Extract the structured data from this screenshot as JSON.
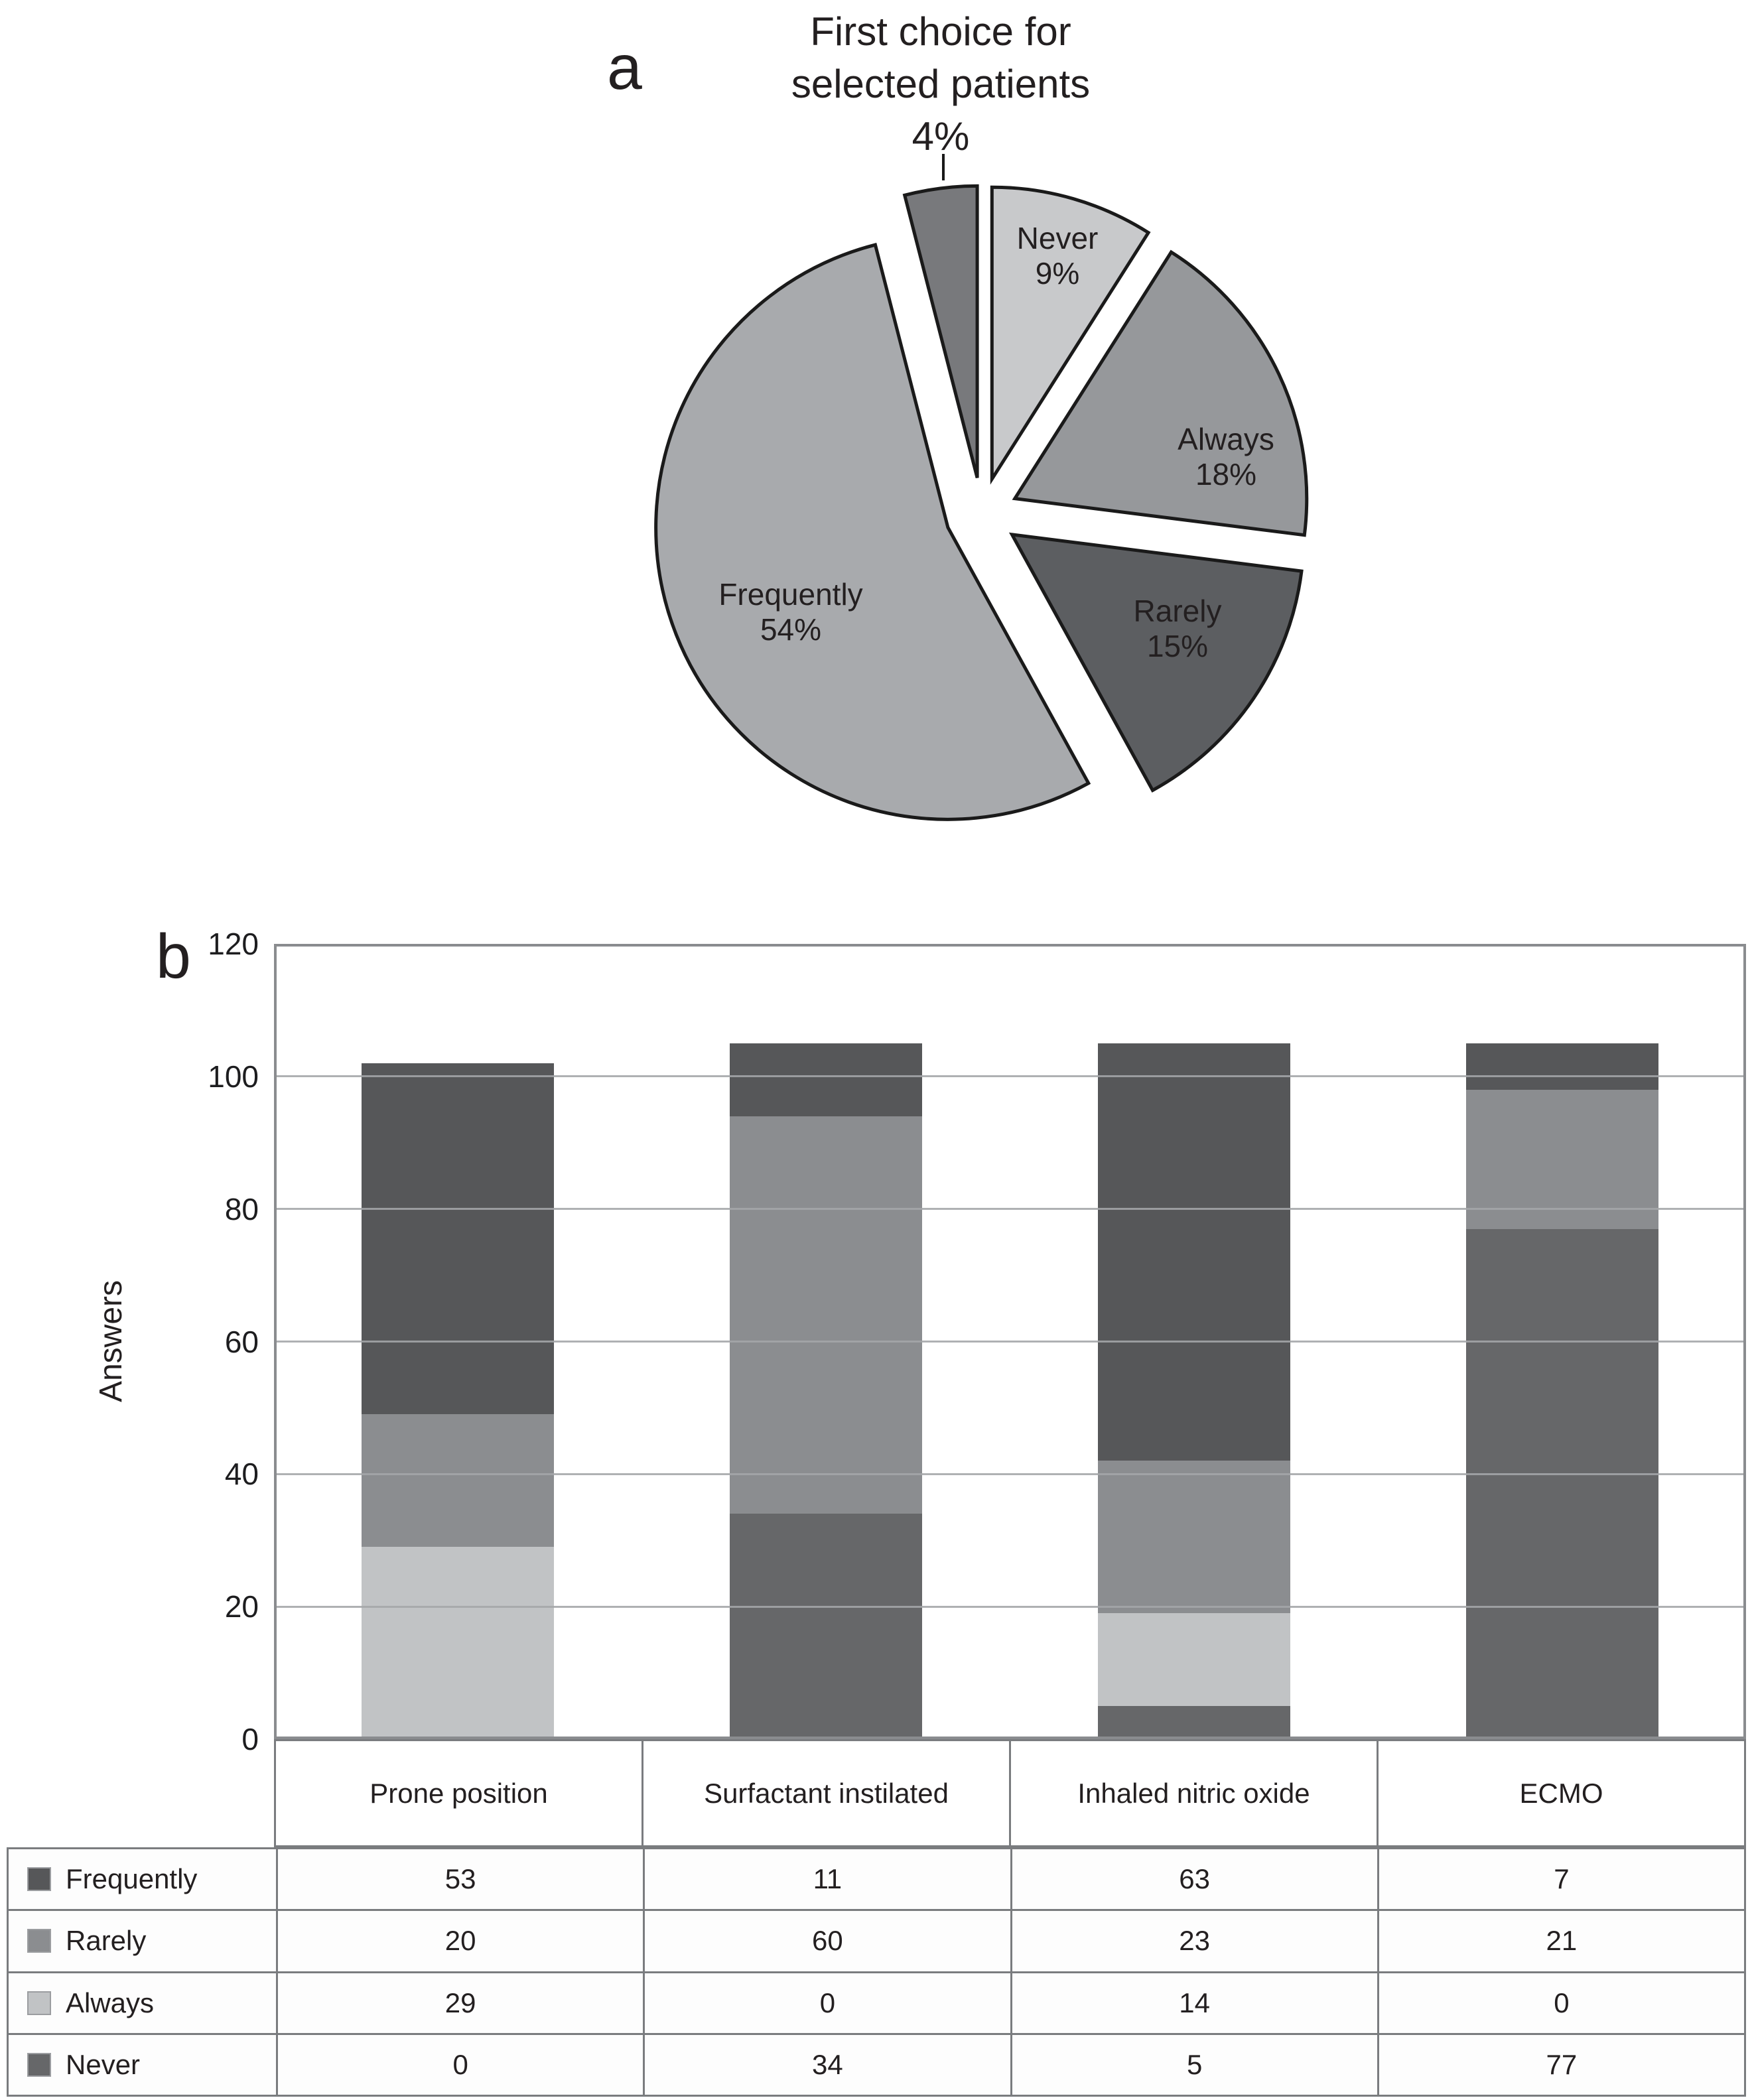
{
  "panel_labels": {
    "a": "a",
    "b": "b"
  },
  "chart_data": [
    {
      "type": "pie",
      "panel": "a",
      "title": "First choice for selected patients 4%",
      "title_lines": [
        "First choice for",
        "selected patients",
        "4%"
      ],
      "start_angle_deg": 0,
      "direction": "clockwise",
      "exploded": true,
      "slices": [
        {
          "label": "Never",
          "value": 9,
          "pct_label": "9%",
          "color": "#c8c9cb"
        },
        {
          "label": "Always",
          "value": 18,
          "pct_label": "18%",
          "color": "#96989b"
        },
        {
          "label": "Rarely",
          "value": 15,
          "pct_label": "15%",
          "color": "#5c5e61"
        },
        {
          "label": "Frequently",
          "value": 54,
          "pct_label": "54%",
          "color": "#a8aaad"
        },
        {
          "label": "First choice for selected patients",
          "value": 4,
          "pct_label": "4%",
          "color": "#78797c",
          "label_external": true
        }
      ]
    },
    {
      "type": "bar",
      "panel": "b",
      "stacked": true,
      "title": "",
      "xlabel": "",
      "ylabel": "Answers",
      "ymin": 0,
      "ymax": 120,
      "yticks": [
        0,
        20,
        40,
        60,
        80,
        100,
        120
      ],
      "grid": true,
      "legend_position": "left-table",
      "categories": [
        "Prone position",
        "Surfactant instilated",
        "Inhaled nitric oxide",
        "ECMO"
      ],
      "series": [
        {
          "name": "Frequently",
          "color": "#565759",
          "values": [
            53,
            11,
            63,
            7
          ]
        },
        {
          "name": "Rarely",
          "color": "#8b8d90",
          "values": [
            20,
            60,
            23,
            21
          ]
        },
        {
          "name": "Always",
          "color": "#c1c3c5",
          "values": [
            29,
            0,
            14,
            0
          ]
        },
        {
          "name": "Never",
          "color": "#666769",
          "values": [
            0,
            34,
            5,
            77
          ]
        }
      ],
      "stack_order_bottom_to_top": [
        "Never",
        "Always",
        "Rarely",
        "Frequently"
      ],
      "category_totals": [
        102,
        105,
        105,
        105
      ]
    }
  ]
}
